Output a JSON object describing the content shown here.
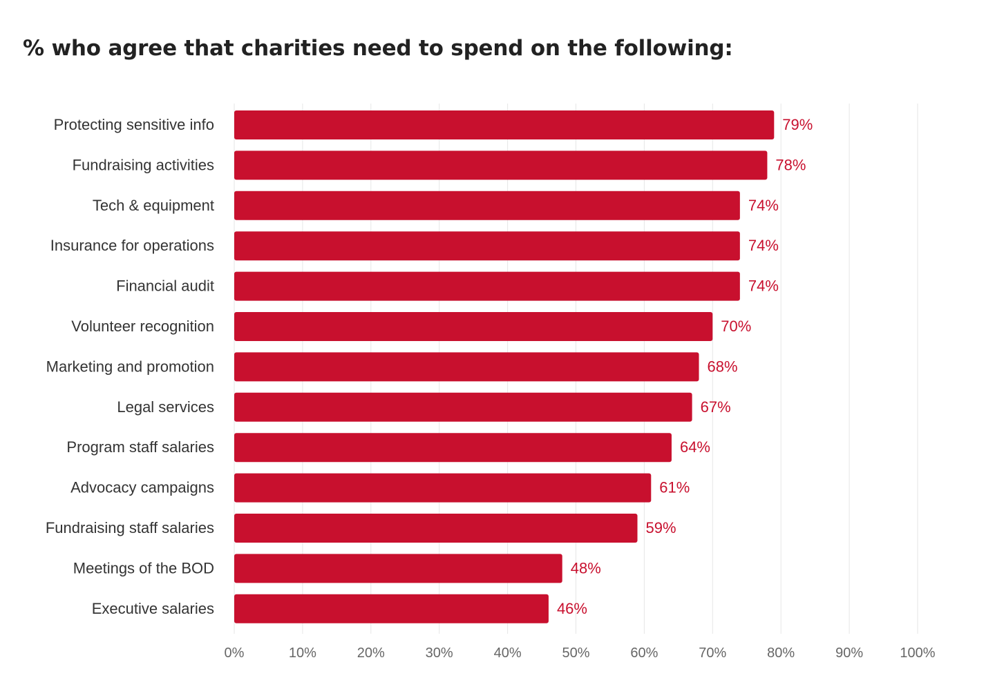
{
  "title": "% who agree that charities need to spend on the following:",
  "colors": {
    "bar": "#c8102e",
    "value_label": "#c8102e",
    "gridline": "#e6e6e6"
  },
  "chart_data": {
    "type": "bar",
    "orientation": "horizontal",
    "title": "% who agree that charities need to spend on the following:",
    "categories": [
      "Protecting sensitive info",
      "Fundraising activities",
      "Tech & equipment",
      "Insurance for operations",
      "Financial audit",
      "Volunteer recognition",
      "Marketing and promotion",
      "Legal services",
      "Program staff salaries",
      "Advocacy campaigns",
      "Fundraising staff salaries",
      "Meetings of the BOD",
      "Executive salaries"
    ],
    "values": [
      79,
      78,
      74,
      74,
      74,
      70,
      68,
      67,
      64,
      61,
      59,
      48,
      46
    ],
    "value_labels": [
      "79%",
      "78%",
      "74%",
      "74%",
      "74%",
      "70%",
      "68%",
      "67%",
      "64%",
      "61%",
      "59%",
      "48%",
      "46%"
    ],
    "x_ticks": [
      "0%",
      "10%",
      "20%",
      "30%",
      "40%",
      "50%",
      "60%",
      "70%",
      "80%",
      "90%",
      "100%"
    ],
    "xlim": [
      0,
      100
    ],
    "grid": true,
    "legend": false
  }
}
